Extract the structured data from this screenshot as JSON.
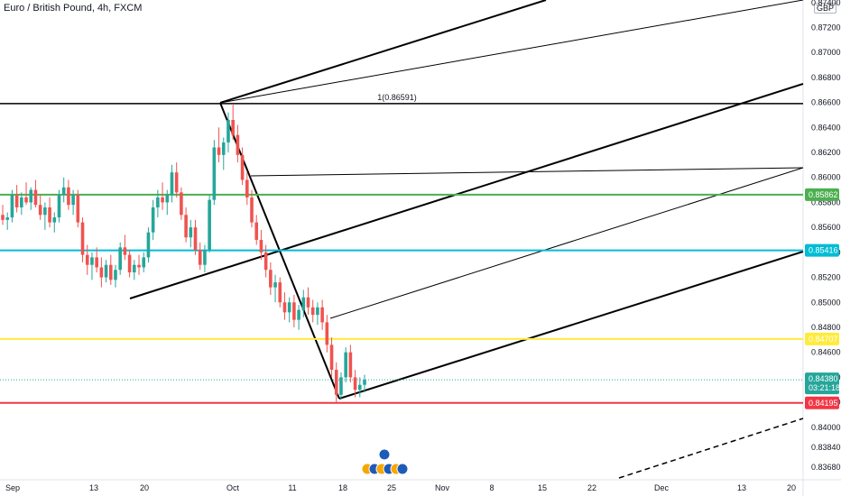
{
  "header": {
    "title": "Euro / British Pound, 4h, FXCM",
    "currency": "GBP"
  },
  "chart_data": {
    "type": "candlestick",
    "title": "Euro / British Pound, 4h, FXCM",
    "y_axis_ticks": [
      "0.87400",
      "0.87200",
      "0.87000",
      "0.86800",
      "0.86600",
      "0.86400",
      "0.86200",
      "0.86000",
      "0.85800",
      "0.85600",
      "0.85400",
      "0.85200",
      "0.85000",
      "0.84800",
      "0.84600",
      "0.84400",
      "0.84200",
      "0.84000",
      "0.83840",
      "0.83680"
    ],
    "x_axis_ticks": [
      "Sep",
      "13",
      "20",
      "Oct",
      "11",
      "18",
      "25",
      "Nov",
      "8",
      "15",
      "22",
      "Dec",
      "13",
      "20"
    ],
    "ylim": [
      0.8358,
      0.8742
    ],
    "levels": [
      {
        "name": "resistance-green",
        "value": 0.85862,
        "label": "0.85862",
        "color": "#4caf50"
      },
      {
        "name": "support-cyan",
        "value": 0.85416,
        "label": "0.85416",
        "color": "#00bcd4"
      },
      {
        "name": "level-yellow",
        "value": 0.84707,
        "label": "0.84707",
        "color": "#ffeb3b"
      },
      {
        "name": "support-red",
        "value": 0.84195,
        "label": "0.84195",
        "color": "#f23645"
      }
    ],
    "horizontal_ray": {
      "value": 0.86591,
      "label": "1(0.86591)"
    },
    "current_price": {
      "value": 0.8438,
      "label": "0.84380",
      "countdown": "03:21:18",
      "color": "#26a69a"
    },
    "candles": [
      [
        0.857,
        0.8578,
        0.8562,
        0.8566
      ],
      [
        0.8566,
        0.8572,
        0.8558,
        0.8568
      ],
      [
        0.8568,
        0.859,
        0.8564,
        0.8586
      ],
      [
        0.8586,
        0.8594,
        0.8572,
        0.8576
      ],
      [
        0.8576,
        0.8588,
        0.857,
        0.8584
      ],
      [
        0.8584,
        0.8596,
        0.8578,
        0.858
      ],
      [
        0.858,
        0.8592,
        0.8574,
        0.859
      ],
      [
        0.859,
        0.8598,
        0.8576,
        0.8578
      ],
      [
        0.8578,
        0.8586,
        0.8566,
        0.857
      ],
      [
        0.857,
        0.858,
        0.8558,
        0.8576
      ],
      [
        0.8576,
        0.8584,
        0.856,
        0.8564
      ],
      [
        0.8564,
        0.8572,
        0.8556,
        0.8568
      ],
      [
        0.8568,
        0.859,
        0.8564,
        0.8586
      ],
      [
        0.8586,
        0.86,
        0.858,
        0.8592
      ],
      [
        0.8592,
        0.8598,
        0.8574,
        0.8578
      ],
      [
        0.8578,
        0.859,
        0.857,
        0.8586
      ],
      [
        0.8586,
        0.859,
        0.856,
        0.8564
      ],
      [
        0.8564,
        0.8568,
        0.8532,
        0.8538
      ],
      [
        0.8538,
        0.8546,
        0.8522,
        0.853
      ],
      [
        0.853,
        0.854,
        0.8518,
        0.8536
      ],
      [
        0.8536,
        0.8544,
        0.8524,
        0.8528
      ],
      [
        0.8528,
        0.8536,
        0.8512,
        0.852
      ],
      [
        0.852,
        0.8534,
        0.8516,
        0.853
      ],
      [
        0.853,
        0.8538,
        0.8514,
        0.8518
      ],
      [
        0.8518,
        0.853,
        0.8512,
        0.8526
      ],
      [
        0.8526,
        0.8548,
        0.8522,
        0.8544
      ],
      [
        0.8544,
        0.8554,
        0.8534,
        0.8538
      ],
      [
        0.8538,
        0.8542,
        0.852,
        0.8524
      ],
      [
        0.8524,
        0.8534,
        0.8518,
        0.853
      ],
      [
        0.853,
        0.8538,
        0.8522,
        0.8528
      ],
      [
        0.8528,
        0.854,
        0.8524,
        0.8536
      ],
      [
        0.8536,
        0.856,
        0.8532,
        0.8556
      ],
      [
        0.8556,
        0.8582,
        0.855,
        0.8576
      ],
      [
        0.8576,
        0.859,
        0.8568,
        0.8584
      ],
      [
        0.8584,
        0.8596,
        0.8574,
        0.858
      ],
      [
        0.858,
        0.859,
        0.857,
        0.8586
      ],
      [
        0.8586,
        0.861,
        0.858,
        0.8604
      ],
      [
        0.8604,
        0.8612,
        0.8584,
        0.8588
      ],
      [
        0.8588,
        0.8592,
        0.8566,
        0.857
      ],
      [
        0.857,
        0.8576,
        0.8548,
        0.8552
      ],
      [
        0.8552,
        0.8566,
        0.8544,
        0.856
      ],
      [
        0.856,
        0.8566,
        0.8538,
        0.8542
      ],
      [
        0.8542,
        0.8548,
        0.8526,
        0.853
      ],
      [
        0.853,
        0.8546,
        0.8524,
        0.8542
      ],
      [
        0.8542,
        0.8586,
        0.854,
        0.8582
      ],
      [
        0.8582,
        0.863,
        0.8578,
        0.8624
      ],
      [
        0.8624,
        0.864,
        0.8612,
        0.8618
      ],
      [
        0.8618,
        0.8632,
        0.8606,
        0.8628
      ],
      [
        0.8628,
        0.8652,
        0.862,
        0.8646
      ],
      [
        0.8646,
        0.8659,
        0.863,
        0.8634
      ],
      [
        0.8634,
        0.8642,
        0.8612,
        0.8618
      ],
      [
        0.8618,
        0.8624,
        0.8594,
        0.8598
      ],
      [
        0.8598,
        0.8604,
        0.8578,
        0.8584
      ],
      [
        0.8584,
        0.859,
        0.856,
        0.8564
      ],
      [
        0.8564,
        0.857,
        0.8546,
        0.855
      ],
      [
        0.855,
        0.8558,
        0.8534,
        0.854
      ],
      [
        0.854,
        0.8546,
        0.852,
        0.8526
      ],
      [
        0.8526,
        0.8532,
        0.8506,
        0.8512
      ],
      [
        0.8512,
        0.8522,
        0.85,
        0.8516
      ],
      [
        0.8516,
        0.852,
        0.8496,
        0.85
      ],
      [
        0.85,
        0.8508,
        0.8486,
        0.8492
      ],
      [
        0.8492,
        0.8504,
        0.8484,
        0.85
      ],
      [
        0.85,
        0.8506,
        0.848,
        0.8486
      ],
      [
        0.8486,
        0.8498,
        0.8478,
        0.8494
      ],
      [
        0.8494,
        0.851,
        0.8488,
        0.8504
      ],
      [
        0.8504,
        0.8512,
        0.849,
        0.8496
      ],
      [
        0.8496,
        0.8502,
        0.8484,
        0.849
      ],
      [
        0.849,
        0.85,
        0.8482,
        0.8496
      ],
      [
        0.8496,
        0.8502,
        0.8478,
        0.8484
      ],
      [
        0.8484,
        0.849,
        0.846,
        0.8466
      ],
      [
        0.8466,
        0.8472,
        0.844,
        0.8446
      ],
      [
        0.8446,
        0.8452,
        0.842,
        0.8426
      ],
      [
        0.8426,
        0.8444,
        0.8422,
        0.844
      ],
      [
        0.844,
        0.8464,
        0.8436,
        0.846
      ],
      [
        0.846,
        0.8466,
        0.8436,
        0.844
      ],
      [
        0.844,
        0.8446,
        0.8424,
        0.843
      ],
      [
        0.843,
        0.844,
        0.8424,
        0.8434
      ],
      [
        0.8434,
        0.8442,
        0.8428,
        0.8438
      ]
    ]
  }
}
